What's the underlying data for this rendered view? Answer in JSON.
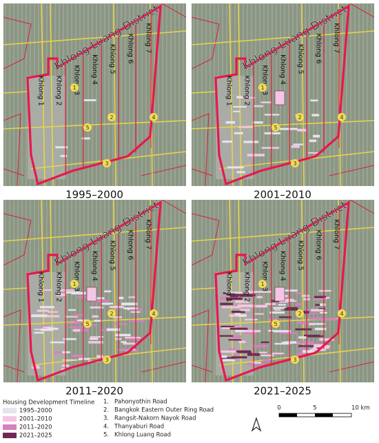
{
  "panels": [
    {
      "label": "1995–2000"
    },
    {
      "label": "2001–2010"
    },
    {
      "label": "2011–2020"
    },
    {
      "label": "2021–2025"
    }
  ],
  "district": "Khlong Luang District",
  "khlongs": [
    "Khlong 1",
    "Khlong 2",
    "Khlong 3",
    "Khlong 4",
    "Khlong 5",
    "Khlong 6",
    "Khlong 7"
  ],
  "road_markers": [
    "1",
    "2",
    "3",
    "4",
    "5"
  ],
  "legend": {
    "title": "Housing Development Timeline",
    "items": [
      {
        "label": "1995–2000",
        "color": "#e6e3ef"
      },
      {
        "label": "2001–2010",
        "color": "#f3c6e4"
      },
      {
        "label": "2011–2020",
        "color": "#d77fc0"
      },
      {
        "label": "2021–2025",
        "color": "#6e2a55"
      }
    ]
  },
  "roads": [
    {
      "number": "1.",
      "name": "Pahonyothin Road"
    },
    {
      "number": "2.",
      "name": "Bangkok Eastern Outer Ring Road"
    },
    {
      "number": "3.",
      "name": "Rangsit-Nakorn Nayok Road"
    },
    {
      "number": "4.",
      "name": "Thanyaburi Road"
    },
    {
      "number": "5.",
      "name": "Khlong Luang Road"
    }
  ],
  "scale": {
    "labels": [
      "0",
      "5",
      "10 km"
    ]
  }
}
